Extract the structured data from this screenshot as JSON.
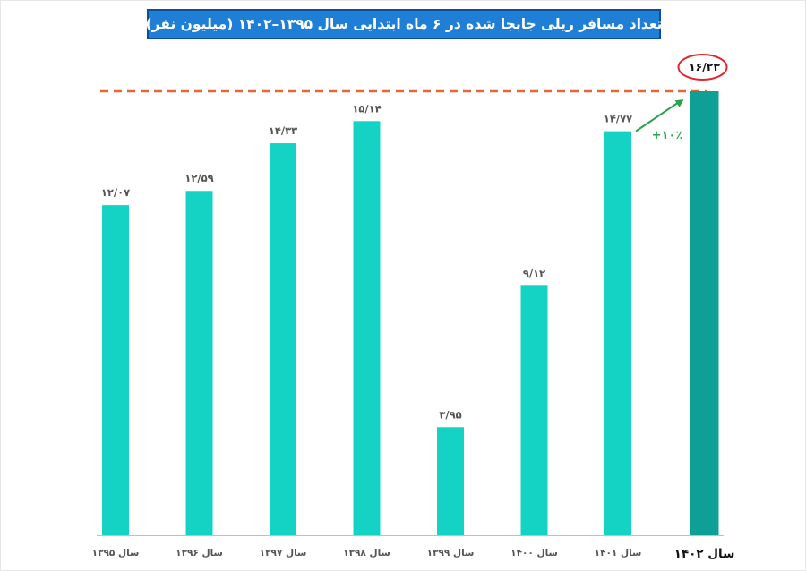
{
  "title": "تعداد مسافر ریلی جابجا شده در ۶ ماه ابتدایی سال ۱۳۹۵–۱۴۰۲ (میلیون نفر)",
  "chart_data": {
    "type": "bar",
    "title": "تعداد مسافر ریلی جابجا شده در ۶ ماه ابتدایی سال ۱۳۹۵–۱۴۰۲ (میلیون نفر)",
    "categories": [
      "سال ۱۳۹۵",
      "سال ۱۳۹۶",
      "سال ۱۳۹۷",
      "سال ۱۳۹۸",
      "سال ۱۳۹۹",
      "سال ۱۴۰۰",
      "سال ۱۴۰۱",
      "سال ۱۴۰۲"
    ],
    "values": [
      12.07,
      12.59,
      14.33,
      15.14,
      3.95,
      9.12,
      14.77,
      16.23
    ],
    "value_labels": [
      "۱۲/۰۷",
      "۱۲/۵۹",
      "۱۴/۳۳",
      "۱۵/۱۴",
      "۳/۹۵",
      "۹/۱۲",
      "۱۴/۷۷",
      "۱۶/۲۳"
    ],
    "highlight_index": 7,
    "ylim": [
      0,
      16.23
    ],
    "grid": false,
    "reference_line_value": 16.23,
    "growth_annotation": "+۱۰٪",
    "colors": {
      "bar": "#14d3c4",
      "highlight_bar": "#0e9f96",
      "reference_line": "#e8653a",
      "circle": "#e0262b",
      "arrow": "#27a348",
      "axis": "#bfbfbf"
    }
  }
}
